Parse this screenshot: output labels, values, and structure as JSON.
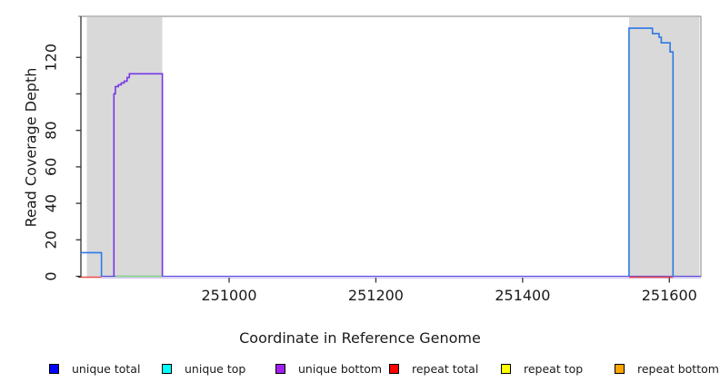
{
  "chart_data": {
    "type": "line",
    "title": "",
    "xlabel": "Coordinate in Reference Genome",
    "ylabel": "Read Coverage Depth",
    "xlim": [
      250798,
      251643
    ],
    "ylim": [
      0,
      142.5
    ],
    "grid": false,
    "legend_position": "bottom",
    "x_ticks": {
      "values": [
        251000,
        251200,
        251400,
        251600
      ],
      "labels": [
        "251000",
        "251200",
        "251400",
        "251600"
      ]
    },
    "y_ticks": {
      "values": [
        0,
        20,
        40,
        60,
        80,
        100,
        120
      ],
      "labels": [
        "0",
        "20",
        "40",
        "60",
        "80",
        "",
        "120"
      ]
    },
    "shaded_regions": [
      {
        "name": "coverage-block-left",
        "x0": 250806,
        "x1": 250909,
        "fill": "#d9d9d9"
      },
      {
        "name": "coverage-block-right",
        "x0": 251545,
        "x1": 251641,
        "fill": "#d9d9d9"
      }
    ],
    "series": [
      {
        "name": "unique-bottom-zero-baseline",
        "color": "#5b4ee0",
        "width": 1.3,
        "underglow": "#cfc0f2",
        "points": [
          [
            250826,
            0
          ],
          [
            251643,
            0
          ]
        ]
      },
      {
        "name": "green-zero-segment",
        "color": "#82d882",
        "width": 1.6,
        "points": [
          [
            250845,
            0
          ],
          [
            250909,
            0
          ]
        ]
      },
      {
        "name": "repeat-total-zero-left",
        "color": "#ef4b4b",
        "width": 1.6,
        "offset": 1,
        "points": [
          [
            250798,
            0
          ],
          [
            250826,
            0
          ]
        ]
      },
      {
        "name": "repeat-total-zero-right",
        "color": "#ef4b4b",
        "width": 1.6,
        "offset": 1,
        "points": [
          [
            251545,
            0
          ],
          [
            251605,
            0
          ]
        ]
      },
      {
        "name": "unique-top-left-step",
        "color": "#2b79e8",
        "width": 1.6,
        "points": [
          [
            250798,
            13
          ],
          [
            250826,
            13
          ],
          [
            250826,
            0
          ]
        ]
      },
      {
        "name": "unique-top-right-block",
        "color": "#2b79e8",
        "width": 1.6,
        "points": [
          [
            251545,
            0
          ],
          [
            251545,
            136
          ],
          [
            251577,
            136
          ],
          [
            251577,
            133
          ],
          [
            251586,
            133
          ],
          [
            251586,
            131
          ],
          [
            251589,
            131
          ],
          [
            251589,
            128
          ],
          [
            251601,
            128
          ],
          [
            251601,
            123
          ],
          [
            251605,
            123
          ],
          [
            251605,
            0
          ]
        ]
      },
      {
        "name": "unique-bottom-left-block",
        "color": "#7636e6",
        "width": 1.6,
        "points": [
          [
            250843,
            0
          ],
          [
            250843,
            100
          ],
          [
            250845,
            100
          ],
          [
            250845,
            104
          ],
          [
            250849,
            104
          ],
          [
            250849,
            105
          ],
          [
            250853,
            105
          ],
          [
            250853,
            106
          ],
          [
            250857,
            106
          ],
          [
            250857,
            107
          ],
          [
            250861,
            107
          ],
          [
            250861,
            109
          ],
          [
            250864,
            109
          ],
          [
            250864,
            111
          ],
          [
            250873,
            111
          ],
          [
            250909,
            111
          ],
          [
            250909,
            0
          ]
        ]
      }
    ]
  },
  "legend": {
    "items": [
      {
        "label": "unique total",
        "color": "#0000ff"
      },
      {
        "label": "unique top",
        "color": "#00ffff"
      },
      {
        "label": "unique bottom",
        "color": "#a020f0"
      },
      {
        "label": "repeat total",
        "color": "#ff0000"
      },
      {
        "label": "repeat top",
        "color": "#ffff00"
      },
      {
        "label": "repeat bottom",
        "color": "#ffa500"
      }
    ]
  },
  "colors": {
    "shade": "#d9d9d9",
    "axis": "#333333",
    "box": "#999999",
    "text": "#1a1a1a",
    "background": "#ffffff"
  }
}
